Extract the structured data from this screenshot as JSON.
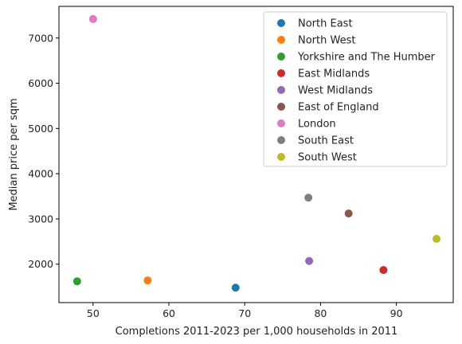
{
  "chart_data": {
    "type": "scatter",
    "title": "",
    "xlabel": "Completions 2011-2023 per 1,000 households in 2011",
    "ylabel": "Median price per sqm",
    "xlim": [
      45.5,
      97.5
    ],
    "ylim": [
      1150,
      7700
    ],
    "xticks": [
      50,
      60,
      70,
      80,
      90
    ],
    "yticks": [
      2000,
      3000,
      4000,
      5000,
      6000,
      7000
    ],
    "grid": false,
    "legend_position": "top-right",
    "series": [
      {
        "name": "North East",
        "color": "#1f77b4",
        "x": 68.8,
        "y": 1480
      },
      {
        "name": "North West",
        "color": "#ff7f0e",
        "x": 57.2,
        "y": 1640
      },
      {
        "name": "Yorkshire and The Humber",
        "color": "#2ca02c",
        "x": 47.9,
        "y": 1620
      },
      {
        "name": "East Midlands",
        "color": "#d62728",
        "x": 88.3,
        "y": 1870
      },
      {
        "name": "West Midlands",
        "color": "#9467bd",
        "x": 78.5,
        "y": 2070
      },
      {
        "name": "East of England",
        "color": "#8c564b",
        "x": 83.7,
        "y": 3120
      },
      {
        "name": "London",
        "color": "#e377c2",
        "x": 50.0,
        "y": 7420
      },
      {
        "name": "South East",
        "color": "#7f7f7f",
        "x": 78.4,
        "y": 3470
      },
      {
        "name": "South West",
        "color": "#bcbd22",
        "x": 95.3,
        "y": 2560
      }
    ]
  }
}
